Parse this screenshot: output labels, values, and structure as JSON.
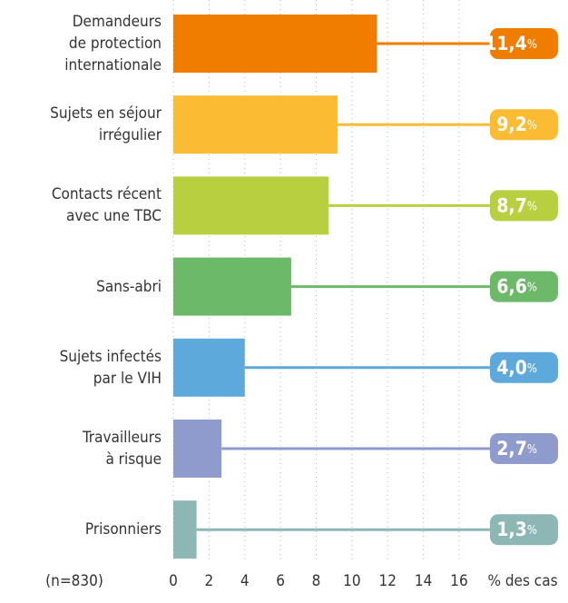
{
  "chart_data": {
    "type": "barh",
    "categories": [
      "Demandeurs\nde protection\ninternationale",
      "Sujets en séjour\nirrégulier",
      "Contacts récent\navec une TBC",
      "Sans-abri",
      "Sujets infectés\npar le VIH",
      "Travailleurs\nà risque",
      "Prisonniers"
    ],
    "values": [
      11.4,
      9.2,
      8.7,
      6.6,
      4.0,
      2.7,
      1.3
    ],
    "value_labels": [
      "11,4",
      "9,2",
      "8,7",
      "6,6",
      "4,0",
      "2,7",
      "1,3"
    ],
    "unit": "%",
    "colors": [
      "#f07d00",
      "#fbbb33",
      "#b8cf3f",
      "#6cb96a",
      "#5ea9dc",
      "#8e9bcc",
      "#8db7b5"
    ],
    "xlim": [
      0,
      16
    ],
    "xticks": [
      0,
      2,
      4,
      6,
      8,
      10,
      12,
      14,
      16
    ],
    "xlabel": "% des cas",
    "note": "(n=830)",
    "grid": true
  }
}
